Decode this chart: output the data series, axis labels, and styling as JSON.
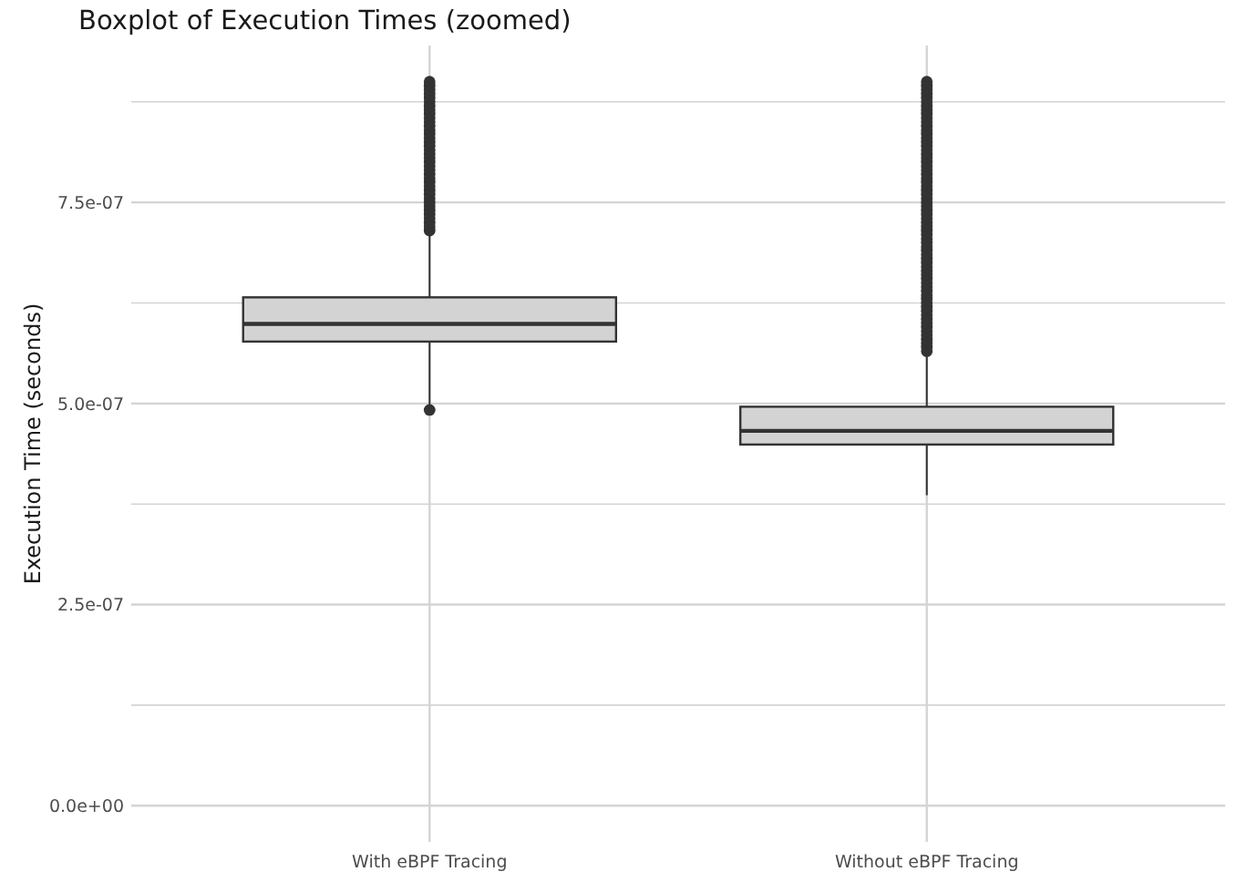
{
  "chart_data": {
    "type": "box",
    "title": "Boxplot of Execution Times (zoomed)",
    "ylabel": "Execution Time (seconds)",
    "categories": [
      "With eBPF Tracing",
      "Without eBPF Tracing"
    ],
    "color": "#d3d3d3",
    "boxes": [
      {
        "low": 4.96e-07,
        "q1": 5.77e-07,
        "median": 5.99e-07,
        "q3": 6.32e-07,
        "high": 7.1e-07,
        "outliers": [
          4.92e-07,
          7.15e-07,
          7.2e-07,
          7.25e-07,
          7.3e-07,
          7.35e-07,
          7.4e-07,
          7.45e-07,
          7.5e-07,
          7.55e-07,
          7.6e-07,
          7.65e-07,
          7.7e-07,
          7.75e-07,
          7.8e-07,
          7.85e-07,
          7.9e-07,
          7.95e-07,
          8e-07,
          8.05e-07,
          8.1e-07,
          8.15e-07,
          8.2e-07,
          8.25e-07,
          8.3e-07,
          8.35e-07,
          8.4e-07,
          8.45e-07,
          8.5e-07,
          8.55e-07,
          8.6e-07,
          8.65e-07,
          8.7e-07,
          8.75e-07,
          8.8e-07,
          8.85e-07,
          8.9e-07,
          8.95e-07,
          9e-07
        ]
      },
      {
        "low": 3.86e-07,
        "q1": 4.49e-07,
        "median": 4.66e-07,
        "q3": 4.96e-07,
        "high": 5.62e-07,
        "outliers": [
          5.65e-07,
          5.7e-07,
          5.75e-07,
          5.8e-07,
          5.85e-07,
          5.9e-07,
          5.95e-07,
          6e-07,
          6.05e-07,
          6.1e-07,
          6.15e-07,
          6.2e-07,
          6.25e-07,
          6.3e-07,
          6.35e-07,
          6.4e-07,
          6.45e-07,
          6.5e-07,
          6.55e-07,
          6.6e-07,
          6.65e-07,
          6.7e-07,
          6.75e-07,
          6.8e-07,
          6.85e-07,
          6.9e-07,
          6.95e-07,
          7e-07,
          7.05e-07,
          7.1e-07,
          7.15e-07,
          7.2e-07,
          7.25e-07,
          7.3e-07,
          7.35e-07,
          7.4e-07,
          7.45e-07,
          7.5e-07,
          7.55e-07,
          7.6e-07,
          7.65e-07,
          7.7e-07,
          7.75e-07,
          7.8e-07,
          7.85e-07,
          7.9e-07,
          7.95e-07,
          8e-07,
          8.05e-07,
          8.1e-07,
          8.15e-07,
          8.2e-07,
          8.25e-07,
          8.3e-07,
          8.35e-07,
          8.4e-07,
          8.45e-07,
          8.5e-07,
          8.55e-07,
          8.6e-07,
          8.65e-07,
          8.7e-07,
          8.75e-07,
          8.8e-07,
          8.85e-07,
          8.9e-07,
          8.95e-07,
          9e-07
        ]
      }
    ],
    "ylim": [
      -4.5e-08,
      9.45e-07
    ],
    "yticks": [
      {
        "value": 0,
        "label": "0.0e+00"
      },
      {
        "value": 1.25e-07,
        "label": null
      },
      {
        "value": 2.5e-07,
        "label": "2.5e-07"
      },
      {
        "value": 3.75e-07,
        "label": null
      },
      {
        "value": 5e-07,
        "label": "5.0e-07"
      },
      {
        "value": 6.25e-07,
        "label": null
      },
      {
        "value": 7.5e-07,
        "label": "7.5e-07"
      },
      {
        "value": 8.75e-07,
        "label": null
      }
    ],
    "grid": true
  }
}
